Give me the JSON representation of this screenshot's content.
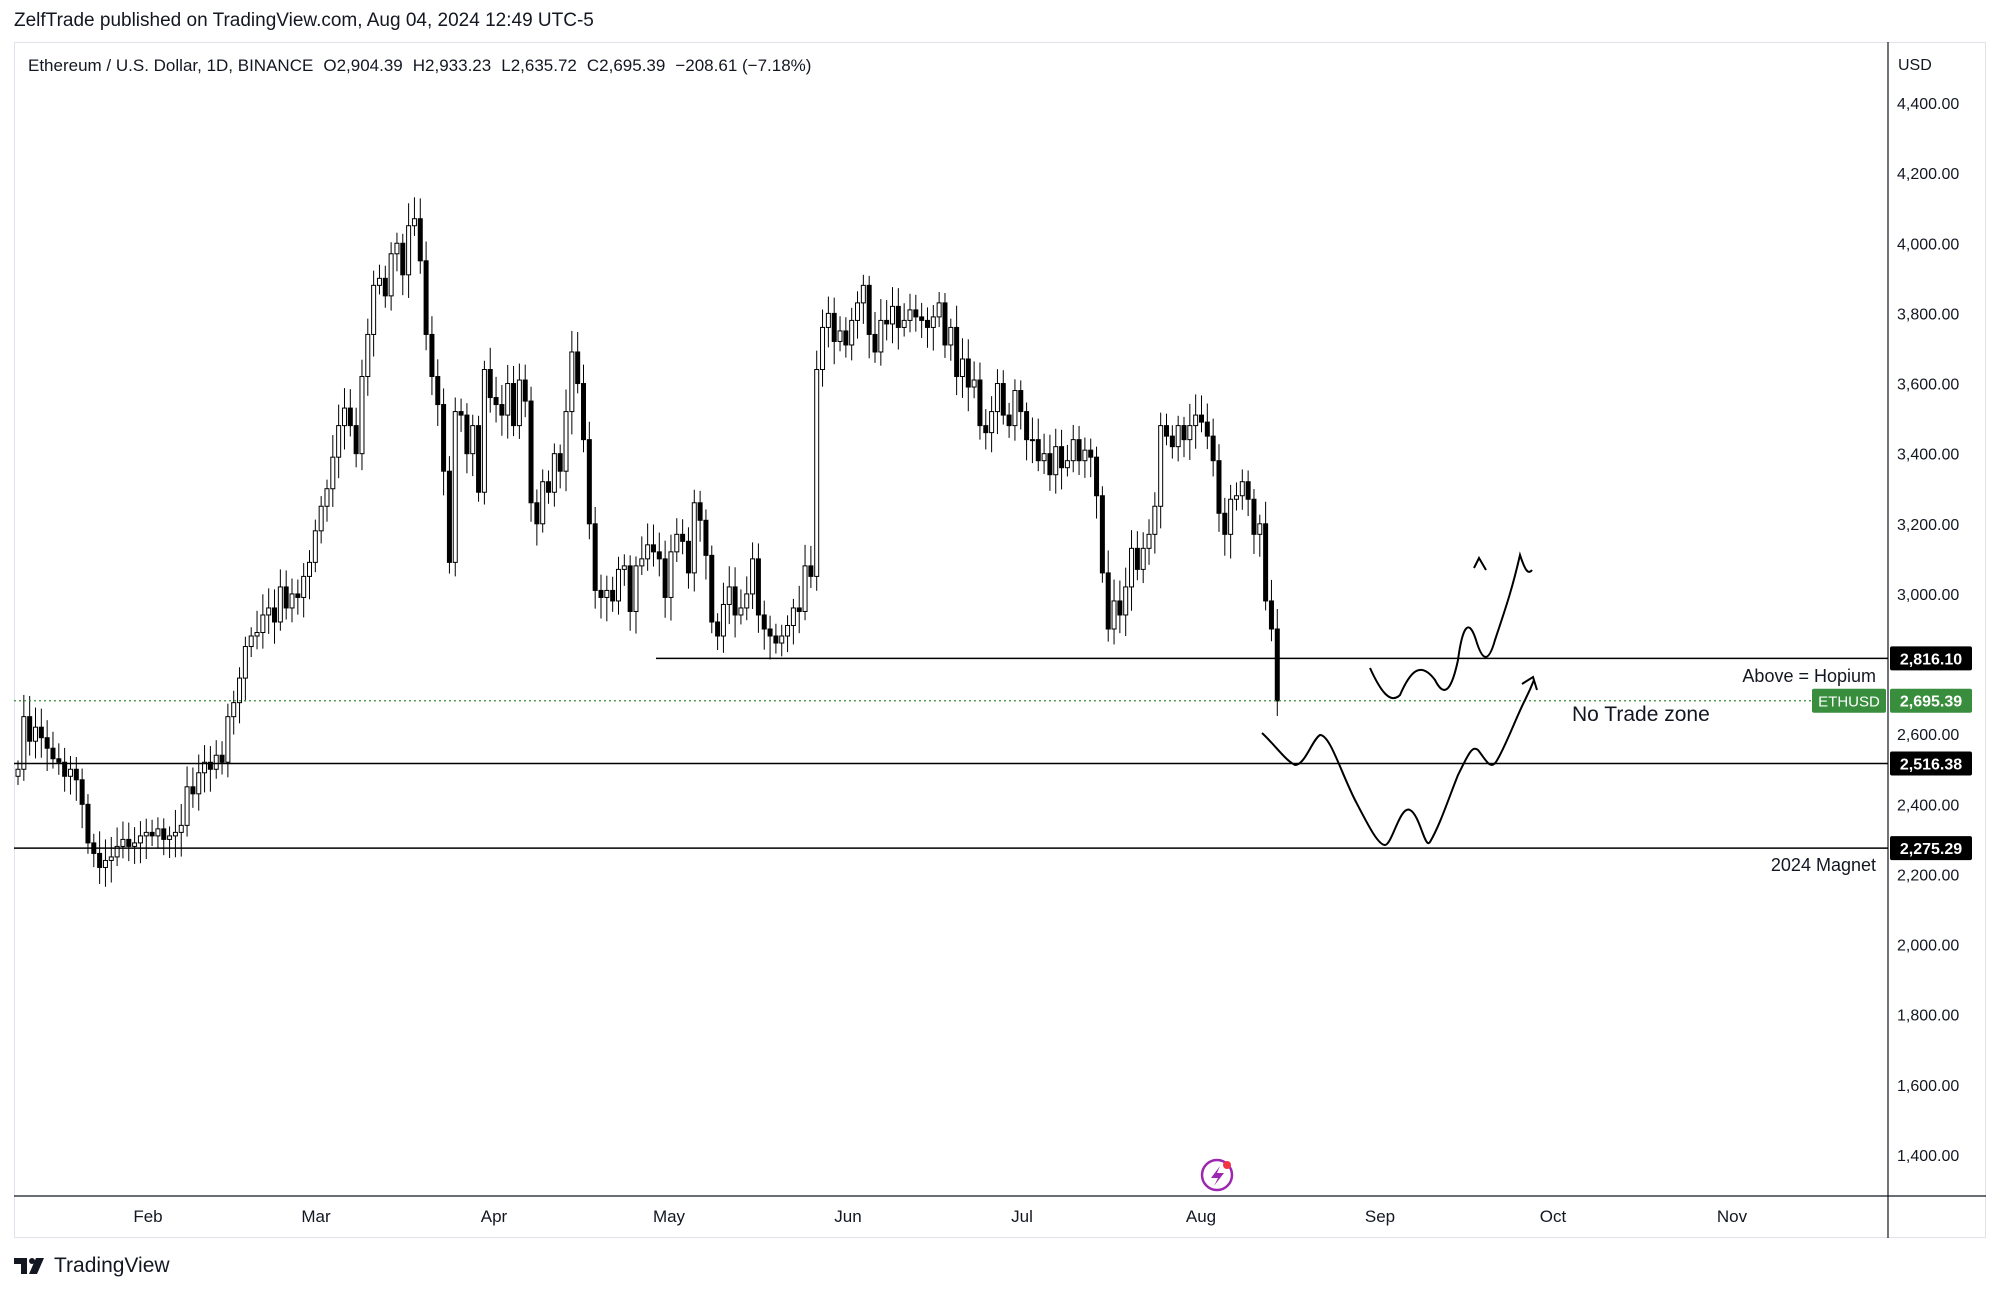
{
  "header": {
    "published_line": "ZelfTrade published on TradingView.com, Aug 04, 2024 12:49 UTC-5"
  },
  "legend": {
    "symbol": "Ethereum / U.S. Dollar, 1D, BINANCE",
    "open_label": "O",
    "open": "2,904.39",
    "high_label": "H",
    "high": "2,933.23",
    "low_label": "L",
    "low": "2,635.72",
    "close_label": "C",
    "close": "2,695.39",
    "change": "−208.61 (−7.18%)"
  },
  "price_axis": {
    "currency": "USD",
    "ticks": [
      "4,400.00",
      "4,200.00",
      "4,000.00",
      "3,800.00",
      "3,600.00",
      "3,400.00",
      "3,200.00",
      "3,000.00",
      "2,600.00",
      "2,400.00",
      "2,200.00",
      "2,000.00",
      "1,800.00",
      "1,600.00",
      "1,400.00"
    ]
  },
  "time_axis": {
    "ticks": [
      "Feb",
      "Mar",
      "Apr",
      "May",
      "Jun",
      "Jul",
      "Aug",
      "Sep",
      "Oct",
      "Nov"
    ]
  },
  "price_labels": [
    {
      "text": "2,816.10",
      "value": 2816.1,
      "style": "black"
    },
    {
      "text": "2,695.39",
      "value": 2695.39,
      "style": "green",
      "tag": "ETHUSD"
    },
    {
      "text": "2,516.38",
      "value": 2516.38,
      "style": "black"
    },
    {
      "text": "2,275.29",
      "value": 2275.29,
      "style": "black"
    }
  ],
  "annotations": {
    "above_hopium": "Above = Hopium",
    "no_trade_zone": "No Trade zone",
    "magnet_2024": "2024 Magnet"
  },
  "colors": {
    "up_candle": "#ffffff",
    "down_candle": "#000000",
    "candle_outline": "#000000",
    "last_price_green": "#388e3c",
    "label_black": "#000000",
    "axis_text": "#131722",
    "border": "#e0e3eb"
  },
  "footer": {
    "brand": "TradingView"
  },
  "chart_data": {
    "type": "candlestick",
    "title": "Ethereum / U.S. Dollar, 1D, BINANCE",
    "ylim": [
      1300,
      4500
    ],
    "horizontal_levels": [
      2816.1,
      2516.38,
      2275.29
    ],
    "last_price": 2695.39,
    "closes": [
      2500,
      2650,
      2580,
      2620,
      2590,
      2560,
      2530,
      2520,
      2480,
      2500,
      2470,
      2400,
      2290,
      2260,
      2220,
      2240,
      2250,
      2280,
      2300,
      2280,
      2290,
      2310,
      2320,
      2310,
      2330,
      2300,
      2310,
      2320,
      2340,
      2450,
      2430,
      2490,
      2520,
      2500,
      2540,
      2520,
      2650,
      2690,
      2760,
      2850,
      2880,
      2890,
      2940,
      2960,
      2920,
      3020,
      2960,
      3000,
      2990,
      3050,
      3090,
      3180,
      3250,
      3300,
      3390,
      3480,
      3530,
      3480,
      3400,
      3620,
      3740,
      3880,
      3900,
      3850,
      3970,
      4000,
      3910,
      4050,
      4070,
      3950,
      3740,
      3620,
      3540,
      3350,
      3090,
      3520,
      3510,
      3400,
      3480,
      3290,
      3640,
      3560,
      3540,
      3510,
      3600,
      3480,
      3610,
      3550,
      3260,
      3200,
      3320,
      3290,
      3400,
      3350,
      3520,
      3690,
      3600,
      3440,
      3200,
      3010,
      2990,
      3010,
      2980,
      3070,
      3080,
      2950,
      3080,
      3100,
      3140,
      3120,
      3100,
      2990,
      3120,
      3170,
      3150,
      3060,
      3260,
      3210,
      3110,
      2920,
      2880,
      2970,
      3020,
      2940,
      2960,
      3000,
      3100,
      2940,
      2900,
      2880,
      2860,
      2880,
      2910,
      2960,
      2950,
      3080,
      3050,
      3640,
      3760,
      3800,
      3720,
      3750,
      3710,
      3780,
      3830,
      3880,
      3740,
      3690,
      3780,
      3770,
      3820,
      3760,
      3780,
      3810,
      3790,
      3780,
      3760,
      3790,
      3830,
      3710,
      3760,
      3620,
      3670,
      3590,
      3610,
      3480,
      3460,
      3520,
      3600,
      3510,
      3480,
      3580,
      3520,
      3440,
      3440,
      3380,
      3400,
      3340,
      3420,
      3360,
      3380,
      3440,
      3380,
      3410,
      3390,
      3280,
      3060,
      2900,
      2980,
      2940,
      3020,
      3130,
      3070,
      3130,
      3170,
      3250,
      3480,
      3450,
      3420,
      3480,
      3440,
      3480,
      3510,
      3490,
      3450,
      3380,
      3230,
      3170,
      3270,
      3280,
      3320,
      3270,
      3170,
      3200,
      2980,
      2900,
      2695
    ],
    "drawn_paths": [
      "projection-upper",
      "projection-lower"
    ]
  }
}
